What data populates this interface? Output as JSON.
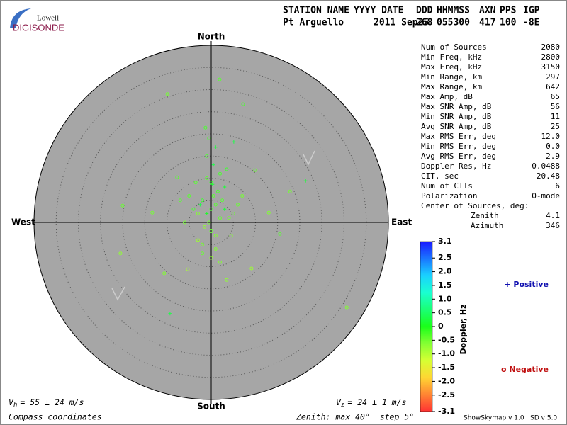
{
  "logo": {
    "top": "Lowell",
    "bottom": "DIGISONDE"
  },
  "header": {
    "labels": [
      "STATION NAME",
      "YYYY DATE",
      "DDD",
      "HHMMSS",
      "AXN",
      "PPS",
      "IGP"
    ],
    "values": [
      "Pt Arguello",
      "2011 Sep25",
      "268",
      "055300",
      "417",
      "100",
      "-8E"
    ]
  },
  "directions": {
    "north": "North",
    "south": "South",
    "west": "West",
    "east": "East"
  },
  "stats": {
    "rows": [
      [
        "Num of Sources",
        "2080"
      ],
      [
        "Min Freq, kHz",
        "2800"
      ],
      [
        "Max Freq, kHz",
        "3150"
      ],
      [
        "Min Range, km",
        "297"
      ],
      [
        "Max Range, km",
        "642"
      ],
      [
        "Max Amp, dB",
        "65"
      ],
      [
        "Max SNR Amp, dB",
        "56"
      ],
      [
        "Min SNR Amp, dB",
        "11"
      ],
      [
        "Avg SNR Amp, dB",
        "25"
      ],
      [
        "Max RMS Err, deg",
        "12.0"
      ],
      [
        "Min RMS Err, deg",
        "0.0"
      ],
      [
        "Avg RMS Err, deg",
        "2.9"
      ],
      [
        "Doppler Res, Hz",
        "0.0488"
      ],
      [
        "CIT, sec",
        "20.48"
      ],
      [
        "Num of CITs",
        "6"
      ],
      [
        "Polarization",
        "O-mode"
      ]
    ],
    "center_title": "Center of Sources, deg:",
    "center_rows": [
      [
        "Zenith",
        "4.1"
      ],
      [
        "Azimuth",
        "346"
      ]
    ]
  },
  "colorbar": {
    "title": "Doppler, Hz",
    "lim": [
      -3.1,
      3.1
    ],
    "ticks": [
      3.1,
      2.5,
      {
        "value": 2,
        "label": "2.0"
      },
      1.5,
      {
        "value": 1,
        "label": "1.0"
      },
      0.5,
      0,
      -0.5,
      {
        "value": -1,
        "label": "-1.0"
      },
      -1.5,
      {
        "value": -2,
        "label": "-2.0"
      },
      -2.5,
      -3.1
    ]
  },
  "legend": {
    "positive_symbol": "+",
    "positive": "Positive",
    "negative_symbol": "o",
    "negative": "Negative"
  },
  "footer": {
    "vh_symbol": "V",
    "vh_sub": "h",
    "vh_text": "= 55 ± 24 m/s",
    "vz_symbol": "V",
    "vz_sub": "z",
    "vz_text": "= 24 ± 1 m/s",
    "coords": "Compass coordinates",
    "zenith": "Zenith: max 40°  step 5°",
    "version": "ShowSkymap v 1.0   SD v 5.0"
  },
  "skymap": {
    "zenith_max": 40,
    "ring_step": 5,
    "east": [
      1.9,
      -9.9,
      7.2,
      30.6,
      -9.3,
      -20,
      -20.5,
      21.3,
      17.8,
      9.1,
      -10.6,
      15.5,
      -5.3,
      3.5,
      -1.3,
      5.1,
      9.9,
      -7.7,
      -13.3,
      13,
      0.3,
      0,
      1,
      -1,
      2,
      -2,
      0.5,
      -0.5,
      3,
      -3,
      1.5,
      -1.5,
      0,
      2.5,
      -2.5,
      4,
      -4,
      0,
      1,
      -1,
      3,
      -3,
      5,
      -5,
      2,
      -2,
      0.5,
      1,
      -1,
      6,
      -6,
      0,
      3.5,
      -3.5,
      2,
      -2,
      7,
      -7,
      1,
      -0.5,
      4.5
    ],
    "north": [
      32.3,
      29,
      26.7,
      -19.2,
      -20.6,
      3.8,
      -7,
      9.4,
      7,
      -10.4,
      -11.5,
      -2.6,
      -10.6,
      -13,
      21.4,
      18.2,
      11.8,
      10.2,
      2.2,
      2.2,
      8.6,
      3,
      4,
      2,
      1,
      5,
      6,
      0,
      3,
      2,
      7,
      -1,
      -2,
      5,
      4,
      1,
      3,
      9,
      -3,
      10,
      8,
      -4,
      2,
      6,
      11,
      -5,
      13,
      -6,
      15,
      4,
      0,
      -8,
      12,
      9,
      -9,
      -7,
      6,
      5,
      17,
      19,
      -3
    ],
    "doppler": [
      -0.3,
      -0.5,
      -0.2,
      -0.6,
      0.3,
      -0.4,
      -0.7,
      0.2,
      -0.5,
      -0.8,
      -0.6,
      -0.3,
      -0.9,
      -0.7,
      -0.2,
      0.3,
      -0.4,
      -0.3,
      -0.5,
      -0.6,
      0.2,
      -0.2,
      -0.3,
      0.1,
      -0.4,
      -0.1,
      -0.3,
      -0.5,
      0.2,
      -0.6,
      -0.2,
      -0.7,
      -0.4,
      -0.3,
      0.3,
      -0.5,
      -0.2,
      -0.1,
      -0.6,
      -0.3,
      0.2,
      -0.8,
      -0.4,
      -0.3,
      -0.2,
      -0.5,
      0.3,
      -0.6,
      -0.2,
      -0.4,
      -0.5,
      -0.7,
      -0.1,
      -0.3,
      -0.6,
      -0.4,
      -0.5,
      -0.3,
      0.2,
      -0.2,
      -0.6
    ]
  }
}
